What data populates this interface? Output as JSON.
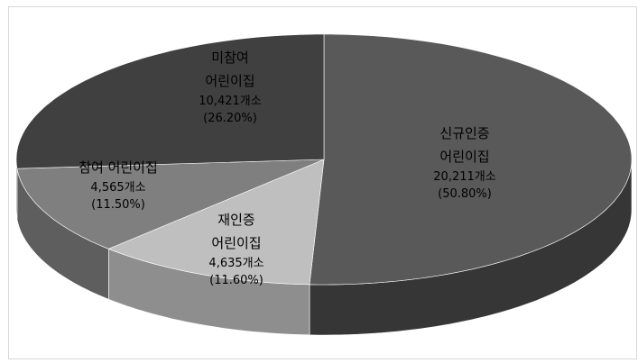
{
  "chart_data": {
    "type": "pie3d",
    "categories": [
      "신규인증\n어린이집",
      "재인증\n어린이집",
      "참여 어린이집",
      "미참여\n어린이집"
    ],
    "values": [
      50.8,
      11.6,
      11.5,
      26.2
    ],
    "value_labels": [
      "(50.80%)",
      "(11.60%)",
      "(11.50%)",
      "(26.20%)"
    ],
    "count_labels": [
      "20,211개소",
      "4,635개소",
      "4,565개소",
      "10,421개소"
    ],
    "colors": [
      "#595959",
      "#bfbfbf",
      "#7f7f7f",
      "#404040"
    ],
    "side_colors": [
      "#363636",
      "#8e8e8e",
      "#5e5e5e",
      "#2b2b2b"
    ]
  }
}
